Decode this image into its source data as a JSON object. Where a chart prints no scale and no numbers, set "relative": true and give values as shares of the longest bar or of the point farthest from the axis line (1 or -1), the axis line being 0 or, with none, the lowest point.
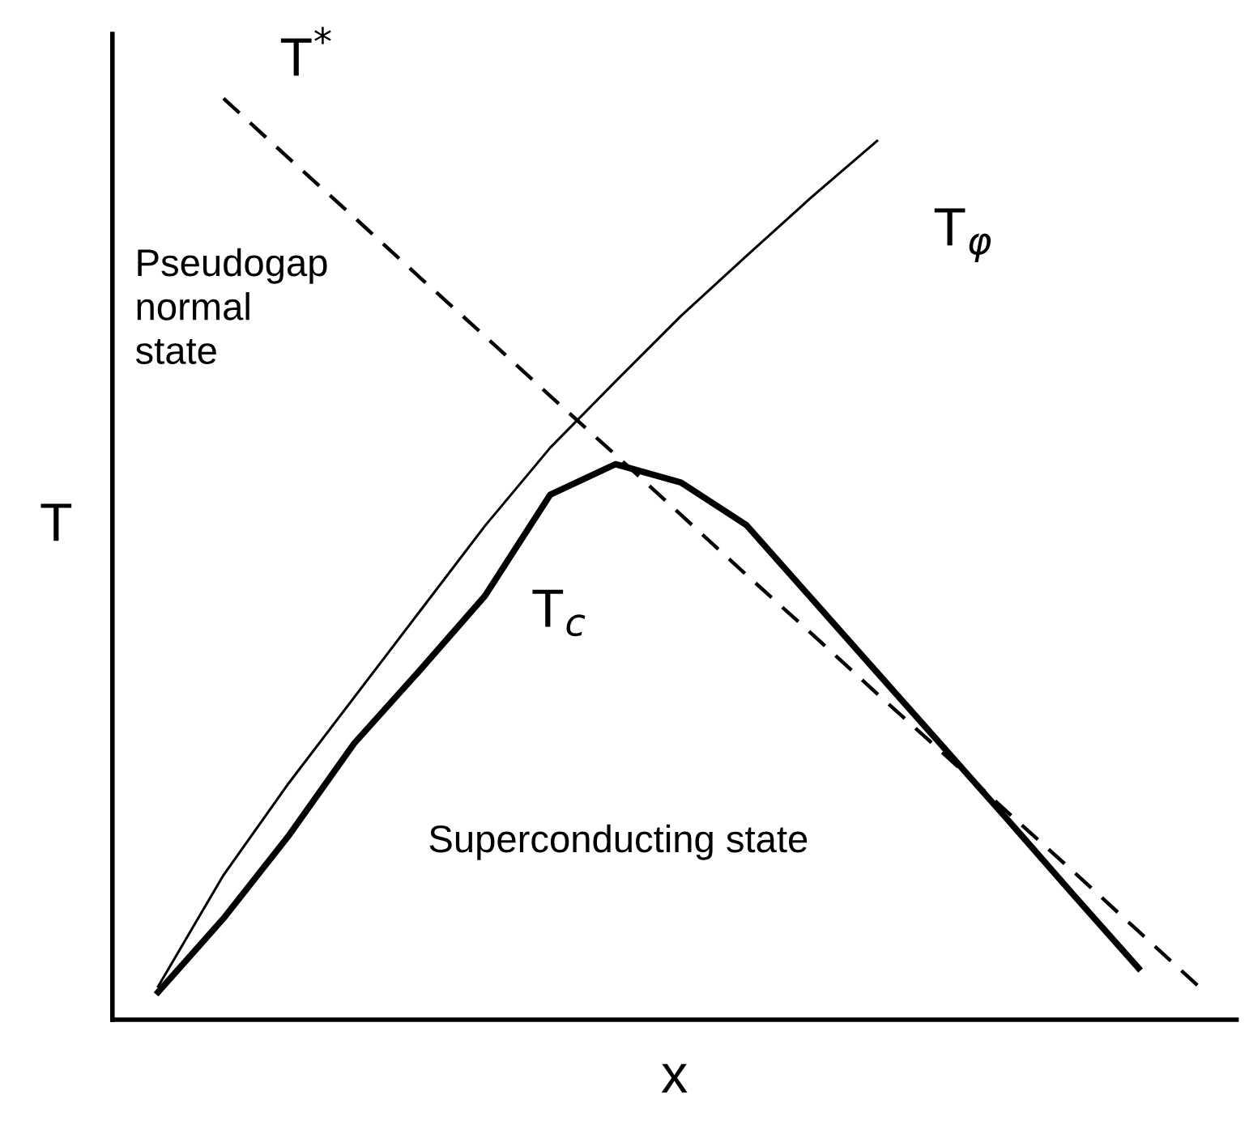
{
  "chart_data": {
    "type": "line",
    "relative": true,
    "xlabel": "x",
    "ylabel": "T",
    "tick_labels": false,
    "legend": false,
    "marker": "none",
    "categories": [
      null,
      null,
      null,
      null,
      null,
      null,
      null,
      null,
      null,
      null,
      null,
      null,
      null,
      null,
      null,
      null,
      null
    ],
    "series": [
      {
        "name": "T$^{*}$",
        "color": "#000000",
        "line_style": "dashed",
        "values": [
          null,
          1.0,
          0.935,
          0.871,
          0.806,
          0.742,
          0.677,
          0.613,
          0.548,
          0.483,
          0.419,
          0.354,
          0.29,
          0.225,
          0.161,
          0.096,
          0.031
        ]
      },
      {
        "name": "T$_{φ}$",
        "color": "#000000",
        "line_style": "solid",
        "values": [
          0.036,
          0.157,
          0.257,
          0.35,
          0.443,
          0.536,
          0.621,
          0.693,
          0.764,
          0.829,
          0.893,
          0.954,
          null,
          null,
          null,
          null,
          null
        ]
      },
      {
        "name": "T$_{c}$",
        "color": "#000000",
        "line_style": "solid",
        "values": [
          0.03,
          0.11,
          0.2,
          0.3,
          0.379,
          0.46,
          0.57,
          0.603,
          0.583,
          0.537,
          0.457,
          0.377,
          0.297,
          0.217,
          0.136,
          0.056,
          null
        ]
      }
    ],
    "annotations": [
      "Pseudogap\nnormal\nstate",
      "Superconducting state"
    ]
  }
}
